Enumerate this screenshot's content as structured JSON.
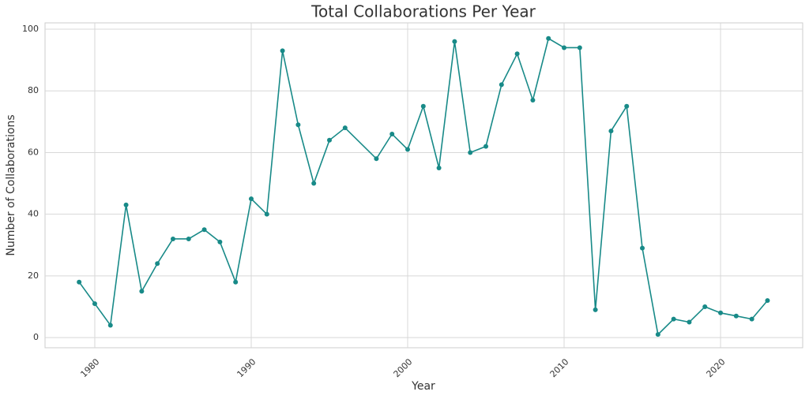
{
  "chart_data": {
    "type": "line",
    "title": "Total Collaborations Per Year",
    "x_label": "Year",
    "y_label": "Number of Collaborations",
    "x": [
      1979,
      1980,
      1981,
      1982,
      1983,
      1984,
      1985,
      1986,
      1987,
      1988,
      1989,
      1990,
      1991,
      1992,
      1993,
      1994,
      1995,
      1996,
      1998,
      1999,
      2000,
      2001,
      2002,
      2003,
      2004,
      2005,
      2006,
      2007,
      2008,
      2009,
      2010,
      2011,
      2012,
      2013,
      2014,
      2015,
      2016,
      2017,
      2018,
      2019,
      2020,
      2021,
      2022,
      2023
    ],
    "values": [
      18,
      11,
      4,
      43,
      15,
      24,
      32,
      32,
      35,
      31,
      18,
      45,
      40,
      93,
      69,
      50,
      64,
      68,
      58,
      66,
      61,
      75,
      55,
      96,
      60,
      62,
      82,
      92,
      77,
      97,
      94,
      94,
      9,
      67,
      75,
      29,
      1,
      6,
      5,
      10,
      8,
      7,
      6,
      12
    ],
    "color": "#188a88",
    "xlim": [
      1976.82,
      2025.25
    ],
    "xticks": [
      1980,
      1990,
      2000,
      2010,
      2020
    ],
    "ylim": [
      -3.3,
      102.05
    ],
    "yticks": [
      0,
      20,
      40,
      60,
      80,
      100
    ],
    "grid": true
  }
}
